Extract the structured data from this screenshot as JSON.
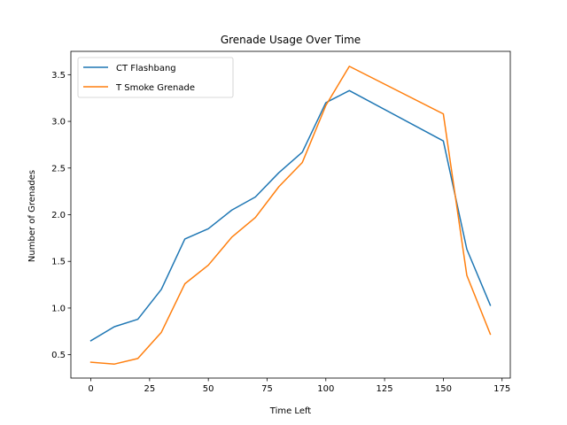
{
  "chart_data": {
    "type": "line",
    "title": "Grenade Usage Over Time",
    "xlabel": "Time Left",
    "ylabel": "Number of Grenades",
    "x": [
      0,
      10,
      20,
      30,
      40,
      50,
      60,
      70,
      80,
      90,
      100,
      110,
      150,
      160,
      170
    ],
    "series": [
      {
        "name": "CT Flashbang",
        "color": "#1f77b4",
        "values": [
          0.65,
          0.8,
          0.88,
          1.2,
          1.74,
          1.85,
          2.05,
          2.19,
          2.45,
          2.67,
          3.2,
          3.33,
          2.79,
          1.63,
          1.03
        ]
      },
      {
        "name": "T Smoke Grenade",
        "color": "#ff7f0e",
        "values": [
          0.42,
          0.4,
          0.46,
          0.74,
          1.26,
          1.46,
          1.76,
          1.97,
          2.3,
          2.56,
          3.17,
          3.59,
          3.08,
          1.35,
          0.72
        ]
      }
    ],
    "xlim": [
      -8.5,
      178.5
    ],
    "ylim": [
      0.25,
      3.75
    ],
    "xticks": [
      0,
      25,
      50,
      75,
      100,
      125,
      150,
      175
    ],
    "yticks": [
      0.5,
      1.0,
      1.5,
      2.0,
      2.5,
      3.0,
      3.5
    ],
    "xtick_labels": [
      "0",
      "25",
      "50",
      "75",
      "100",
      "125",
      "150",
      "175"
    ],
    "ytick_labels": [
      "0.5",
      "1.0",
      "1.5",
      "2.0",
      "2.5",
      "3.0",
      "3.5"
    ],
    "grid": false,
    "legend_position": "top-left"
  }
}
